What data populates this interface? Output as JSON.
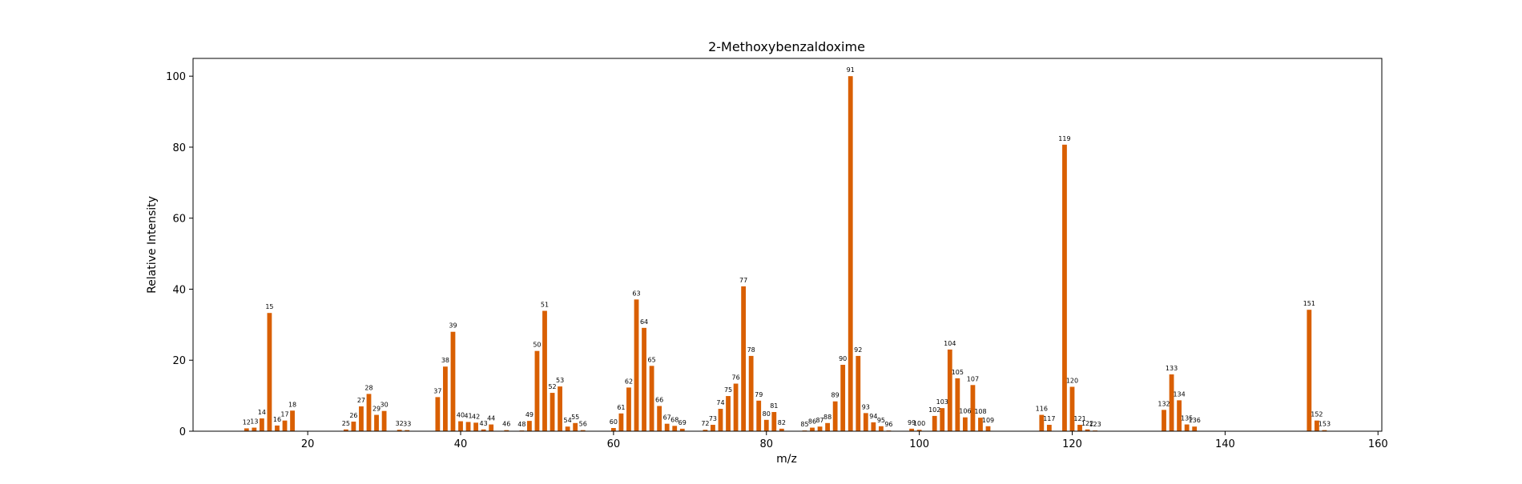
{
  "chart_data": {
    "type": "bar",
    "title": "2-Methoxybenzaldoxime",
    "xlabel": "m/z",
    "ylabel": "Relative Intensity",
    "xlim": [
      5,
      160.5
    ],
    "ylim": [
      0,
      105
    ],
    "x_ticks": [
      20,
      40,
      60,
      80,
      100,
      120,
      140,
      160
    ],
    "y_ticks": [
      0,
      20,
      40,
      60,
      80,
      100
    ],
    "bar_color": "#d95f02",
    "grid": false,
    "x": [
      12,
      13,
      14,
      15,
      16,
      17,
      18,
      25,
      26,
      27,
      28,
      29,
      30,
      32,
      33,
      37,
      38,
      39,
      40,
      41,
      42,
      43,
      44,
      46,
      48,
      49,
      50,
      51,
      52,
      53,
      54,
      55,
      56,
      60,
      61,
      62,
      63,
      64,
      65,
      66,
      67,
      68,
      69,
      72,
      73,
      74,
      75,
      76,
      77,
      78,
      79,
      80,
      81,
      82,
      85,
      86,
      87,
      88,
      89,
      90,
      91,
      92,
      93,
      94,
      95,
      96,
      99,
      100,
      102,
      103,
      104,
      105,
      106,
      107,
      108,
      109,
      116,
      117,
      119,
      120,
      121,
      122,
      123,
      132,
      133,
      134,
      135,
      136,
      151,
      152,
      153
    ],
    "values": [
      0.8,
      1.0,
      3.6,
      33.3,
      1.6,
      3.0,
      5.8,
      0.5,
      2.7,
      7.0,
      10.5,
      4.6,
      5.7,
      0.4,
      0.3,
      9.6,
      18.2,
      28.0,
      2.8,
      2.6,
      2.4,
      0.5,
      1.9,
      0.3,
      0.2,
      2.9,
      22.6,
      33.9,
      10.8,
      12.6,
      1.3,
      2.3,
      0.3,
      0.9,
      5.0,
      12.3,
      37.1,
      29.1,
      18.4,
      7.1,
      2.1,
      1.5,
      0.7,
      0.4,
      1.8,
      6.3,
      9.9,
      13.4,
      40.8,
      21.2,
      8.6,
      3.2,
      5.4,
      0.7,
      0.2,
      1.0,
      1.3,
      2.3,
      8.4,
      18.7,
      100.0,
      21.2,
      5.1,
      2.5,
      1.4,
      0.2,
      0.7,
      0.4,
      4.3,
      6.5,
      23.0,
      14.9,
      3.9,
      13.0,
      3.8,
      1.4,
      4.6,
      1.8,
      80.7,
      12.5,
      1.8,
      0.5,
      0.2,
      6.0,
      16.0,
      8.7,
      1.9,
      1.3,
      34.2,
      3.0,
      0.3
    ],
    "labels": [
      "12",
      "13",
      "14",
      "15",
      "16",
      "17",
      "18",
      "25",
      "26",
      "27",
      "28",
      "29",
      "30",
      "32",
      "33",
      "37",
      "38",
      "39",
      "40",
      "41",
      "42",
      "43",
      "44",
      "46",
      "48",
      "49",
      "50",
      "51",
      "52",
      "53",
      "54",
      "55",
      "56",
      "60",
      "61",
      "62",
      "63",
      "64",
      "65",
      "66",
      "67",
      "68",
      "69",
      "72",
      "73",
      "74",
      "75",
      "76",
      "77",
      "78",
      "79",
      "80",
      "81",
      "82",
      "85",
      "86",
      "87",
      "88",
      "89",
      "90",
      "91",
      "92",
      "93",
      "94",
      "95",
      "96",
      "99",
      "100",
      "102",
      "103",
      "104",
      "105",
      "106",
      "107",
      "108",
      "109",
      "116",
      "117",
      "119",
      "120",
      "121",
      "122",
      "123",
      "132",
      "133",
      "134",
      "135",
      "136",
      "151",
      "152",
      "153"
    ]
  }
}
